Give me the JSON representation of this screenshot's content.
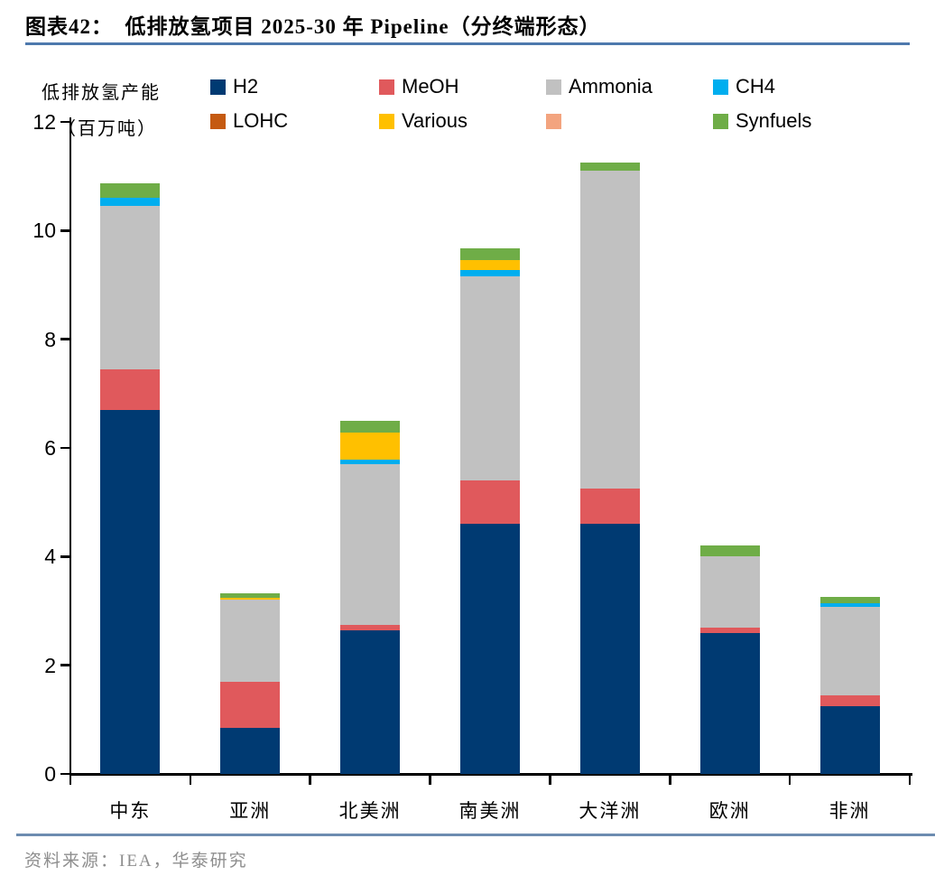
{
  "header": {
    "title": "图表42：  低排放氢项目 2025-30 年 Pipeline（分终端形态）"
  },
  "axis": {
    "title_line1": "低排放氢产能",
    "title_line2": "（百万吨）"
  },
  "footer": {
    "source": "资料来源：IEA，华泰研究"
  },
  "colors": {
    "top_rule": "#4e79ad",
    "bottom_rule": "#6d8cb0",
    "axis_line": "#000000",
    "source_text": "#8e8e8e"
  },
  "chart_data": {
    "type": "bar",
    "stacked": true,
    "title": "低排放氢项目 2025-30 年 Pipeline（分终端形态）",
    "ylabel": "低排放氢产能（百万吨）",
    "xlabel": "",
    "ylim": [
      0,
      12
    ],
    "yticks": [
      0,
      2,
      4,
      6,
      8,
      10,
      12
    ],
    "grid": false,
    "legend_position": "top",
    "categories": [
      "中东",
      "亚洲",
      "北美洲",
      "南美洲",
      "大洋洲",
      "欧洲",
      "非洲"
    ],
    "series": [
      {
        "name": "H2",
        "color": "#003a72",
        "values": [
          6.7,
          0.85,
          2.65,
          4.6,
          4.6,
          2.6,
          1.25
        ]
      },
      {
        "name": "MeOH",
        "color": "#e0595c",
        "values": [
          0.75,
          0.85,
          0.1,
          0.8,
          0.65,
          0.1,
          0.2
        ]
      },
      {
        "name": "Ammonia",
        "color": "#c1c1c1",
        "values": [
          3.0,
          1.5,
          2.95,
          3.75,
          5.85,
          1.3,
          1.63
        ]
      },
      {
        "name": "CH4",
        "color": "#00aeef",
        "values": [
          0.15,
          0,
          0.08,
          0.12,
          0,
          0,
          0.06
        ]
      },
      {
        "name": "LOHC",
        "color": "#c55a11",
        "values": [
          0,
          0,
          0,
          0,
          0,
          0,
          0
        ]
      },
      {
        "name": "Various",
        "color": "#ffc000",
        "values": [
          0,
          0.04,
          0.5,
          0.18,
          0,
          0,
          0
        ]
      },
      {
        "name": "",
        "color": "#f3a47f",
        "values": [
          0,
          0,
          0,
          0,
          0,
          0,
          0
        ]
      },
      {
        "name": "Synfuels",
        "color": "#6fad47",
        "values": [
          0.27,
          0.08,
          0.22,
          0.22,
          0.15,
          0.2,
          0.12
        ]
      }
    ],
    "totals": [
      10.87,
      3.32,
      6.5,
      9.67,
      11.25,
      4.2,
      3.26
    ]
  }
}
